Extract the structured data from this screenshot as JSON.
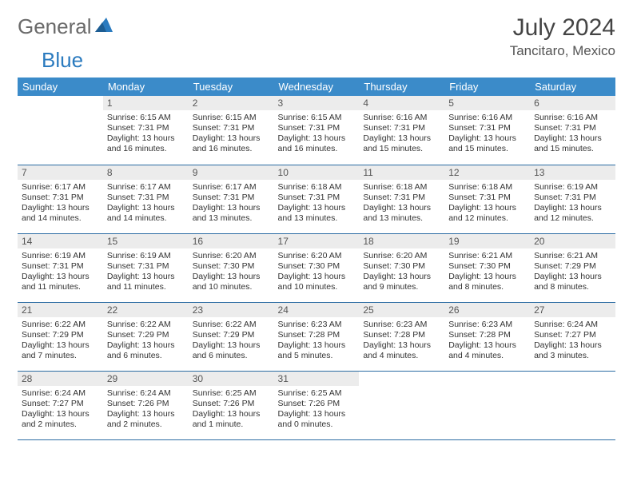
{
  "brand": {
    "part1": "General",
    "part2": "Blue"
  },
  "title": "July 2024",
  "location": "Tancitaro, Mexico",
  "colors": {
    "header_bg": "#3b8bc9",
    "header_text": "#ffffff",
    "daynum_bg": "#ececec",
    "border": "#2b6ca3",
    "brand_gray": "#6a6a6a",
    "brand_blue": "#2b7bbf"
  },
  "weekdays": [
    "Sunday",
    "Monday",
    "Tuesday",
    "Wednesday",
    "Thursday",
    "Friday",
    "Saturday"
  ],
  "start_offset": 1,
  "days": [
    {
      "n": 1,
      "sr": "6:15 AM",
      "ss": "7:31 PM",
      "dl": "13 hours and 16 minutes."
    },
    {
      "n": 2,
      "sr": "6:15 AM",
      "ss": "7:31 PM",
      "dl": "13 hours and 16 minutes."
    },
    {
      "n": 3,
      "sr": "6:15 AM",
      "ss": "7:31 PM",
      "dl": "13 hours and 16 minutes."
    },
    {
      "n": 4,
      "sr": "6:16 AM",
      "ss": "7:31 PM",
      "dl": "13 hours and 15 minutes."
    },
    {
      "n": 5,
      "sr": "6:16 AM",
      "ss": "7:31 PM",
      "dl": "13 hours and 15 minutes."
    },
    {
      "n": 6,
      "sr": "6:16 AM",
      "ss": "7:31 PM",
      "dl": "13 hours and 15 minutes."
    },
    {
      "n": 7,
      "sr": "6:17 AM",
      "ss": "7:31 PM",
      "dl": "13 hours and 14 minutes."
    },
    {
      "n": 8,
      "sr": "6:17 AM",
      "ss": "7:31 PM",
      "dl": "13 hours and 14 minutes."
    },
    {
      "n": 9,
      "sr": "6:17 AM",
      "ss": "7:31 PM",
      "dl": "13 hours and 13 minutes."
    },
    {
      "n": 10,
      "sr": "6:18 AM",
      "ss": "7:31 PM",
      "dl": "13 hours and 13 minutes."
    },
    {
      "n": 11,
      "sr": "6:18 AM",
      "ss": "7:31 PM",
      "dl": "13 hours and 13 minutes."
    },
    {
      "n": 12,
      "sr": "6:18 AM",
      "ss": "7:31 PM",
      "dl": "13 hours and 12 minutes."
    },
    {
      "n": 13,
      "sr": "6:19 AM",
      "ss": "7:31 PM",
      "dl": "13 hours and 12 minutes."
    },
    {
      "n": 14,
      "sr": "6:19 AM",
      "ss": "7:31 PM",
      "dl": "13 hours and 11 minutes."
    },
    {
      "n": 15,
      "sr": "6:19 AM",
      "ss": "7:31 PM",
      "dl": "13 hours and 11 minutes."
    },
    {
      "n": 16,
      "sr": "6:20 AM",
      "ss": "7:30 PM",
      "dl": "13 hours and 10 minutes."
    },
    {
      "n": 17,
      "sr": "6:20 AM",
      "ss": "7:30 PM",
      "dl": "13 hours and 10 minutes."
    },
    {
      "n": 18,
      "sr": "6:20 AM",
      "ss": "7:30 PM",
      "dl": "13 hours and 9 minutes."
    },
    {
      "n": 19,
      "sr": "6:21 AM",
      "ss": "7:30 PM",
      "dl": "13 hours and 8 minutes."
    },
    {
      "n": 20,
      "sr": "6:21 AM",
      "ss": "7:29 PM",
      "dl": "13 hours and 8 minutes."
    },
    {
      "n": 21,
      "sr": "6:22 AM",
      "ss": "7:29 PM",
      "dl": "13 hours and 7 minutes."
    },
    {
      "n": 22,
      "sr": "6:22 AM",
      "ss": "7:29 PM",
      "dl": "13 hours and 6 minutes."
    },
    {
      "n": 23,
      "sr": "6:22 AM",
      "ss": "7:29 PM",
      "dl": "13 hours and 6 minutes."
    },
    {
      "n": 24,
      "sr": "6:23 AM",
      "ss": "7:28 PM",
      "dl": "13 hours and 5 minutes."
    },
    {
      "n": 25,
      "sr": "6:23 AM",
      "ss": "7:28 PM",
      "dl": "13 hours and 4 minutes."
    },
    {
      "n": 26,
      "sr": "6:23 AM",
      "ss": "7:28 PM",
      "dl": "13 hours and 4 minutes."
    },
    {
      "n": 27,
      "sr": "6:24 AM",
      "ss": "7:27 PM",
      "dl": "13 hours and 3 minutes."
    },
    {
      "n": 28,
      "sr": "6:24 AM",
      "ss": "7:27 PM",
      "dl": "13 hours and 2 minutes."
    },
    {
      "n": 29,
      "sr": "6:24 AM",
      "ss": "7:26 PM",
      "dl": "13 hours and 2 minutes."
    },
    {
      "n": 30,
      "sr": "6:25 AM",
      "ss": "7:26 PM",
      "dl": "13 hours and 1 minute."
    },
    {
      "n": 31,
      "sr": "6:25 AM",
      "ss": "7:26 PM",
      "dl": "13 hours and 0 minutes."
    }
  ],
  "labels": {
    "sunrise": "Sunrise:",
    "sunset": "Sunset:",
    "daylight": "Daylight:"
  }
}
